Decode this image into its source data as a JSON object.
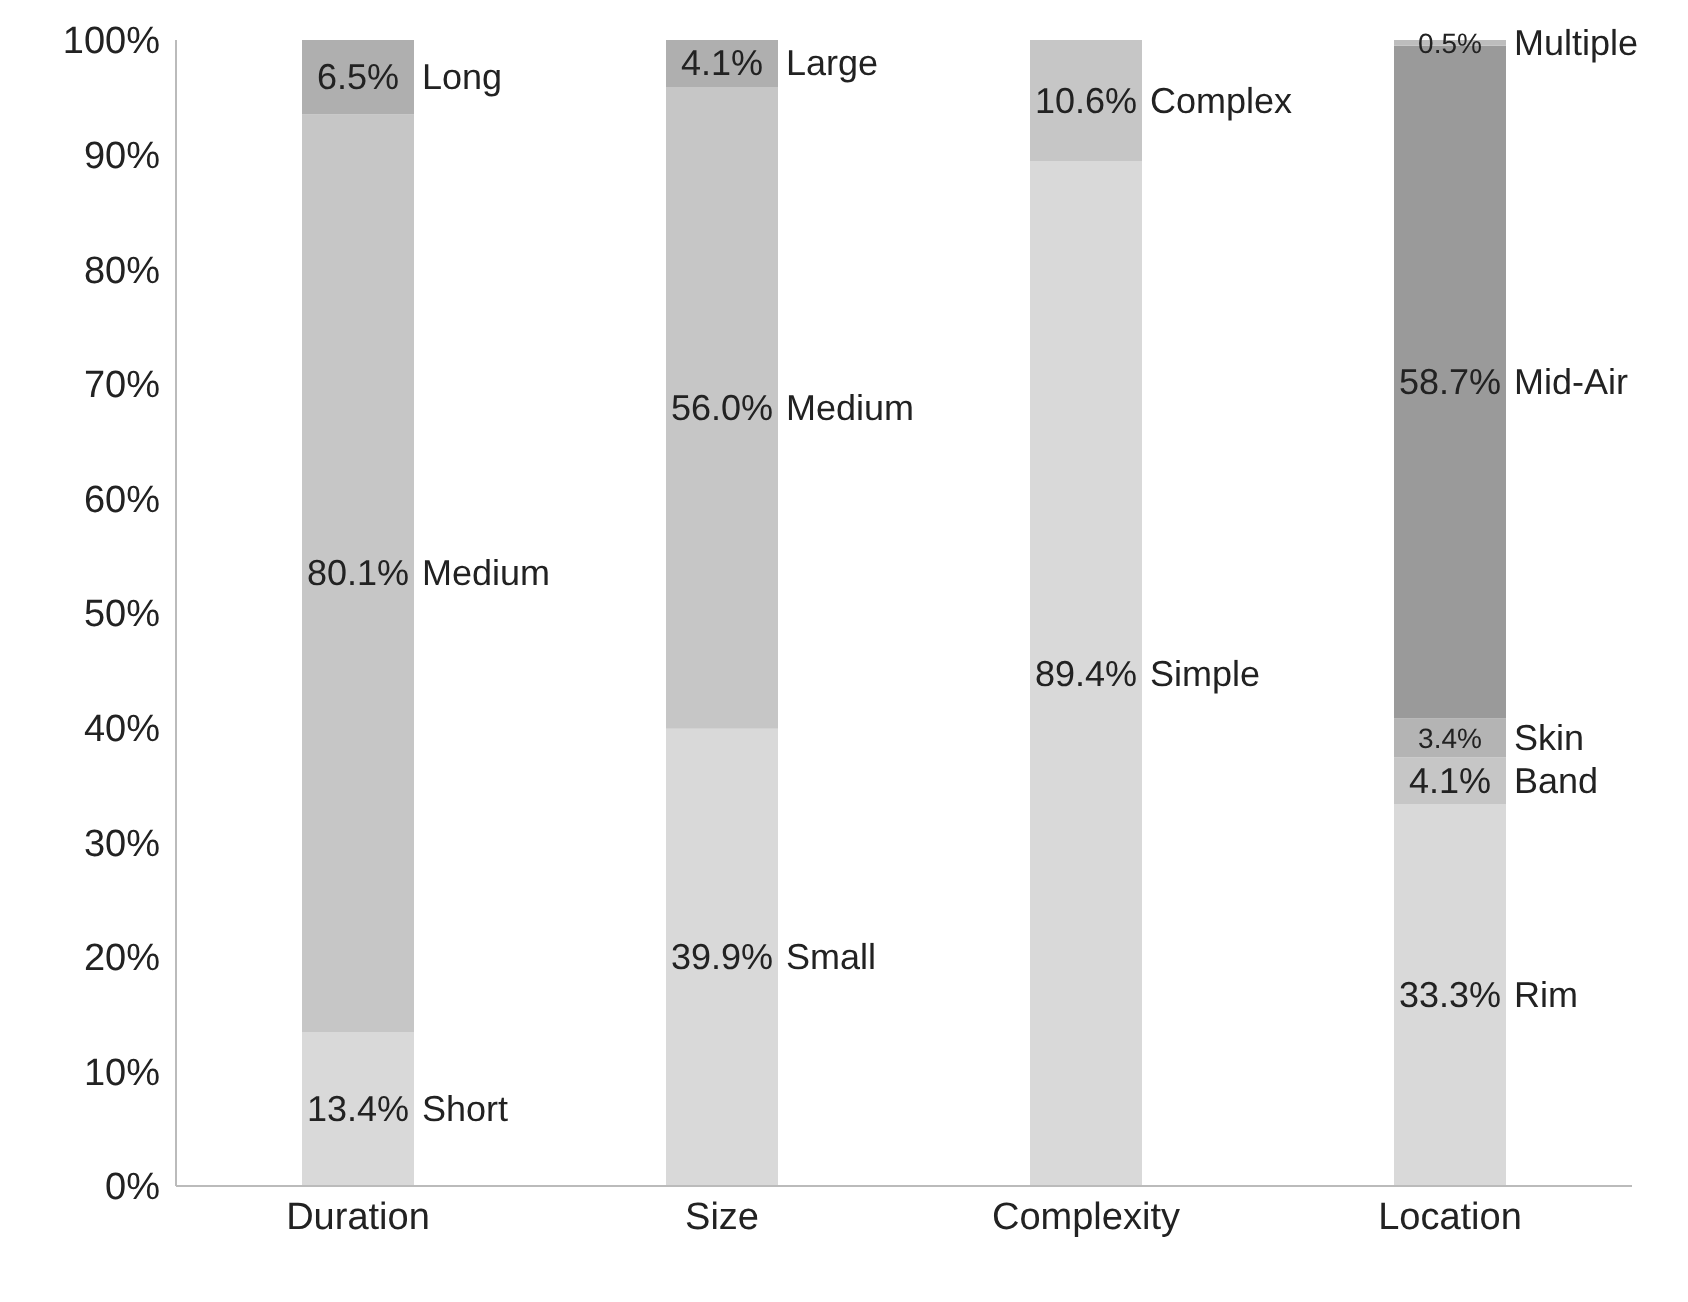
{
  "chart_data": {
    "type": "bar",
    "stacked": true,
    "categories": [
      "Duration",
      "Size",
      "Complexity",
      "Location"
    ],
    "series": [
      {
        "colors": [
          "#d9d9d9",
          "#d9d9d9",
          "#d9d9d9",
          "#d9d9d9"
        ],
        "values": [
          13.4,
          39.9,
          89.4,
          33.3
        ],
        "value_labels": [
          "13.4%",
          "39.9%",
          "89.4%",
          "33.3%"
        ]
      },
      {
        "colors": [
          "#c6c6c6",
          "#c6c6c6",
          "#c6c6c6",
          "#c6c6c6"
        ],
        "values": [
          80.1,
          56.0,
          10.6,
          4.1
        ],
        "value_labels": [
          "80.1%",
          "56.0%",
          "10.6%",
          "4.1%"
        ]
      },
      {
        "colors": [
          "#afafaf",
          "#afafaf",
          null,
          "#b4b4b4"
        ],
        "values": [
          6.5,
          4.1,
          null,
          3.4
        ],
        "value_labels": [
          "6.5%",
          "4.1%",
          null,
          "3.4%"
        ]
      },
      {
        "colors": [
          null,
          null,
          null,
          "#9a9a9a"
        ],
        "values": [
          null,
          null,
          null,
          58.7
        ],
        "value_labels": [
          null,
          null,
          null,
          "58.7%"
        ]
      },
      {
        "colors": [
          null,
          null,
          null,
          "#bdbdbd"
        ],
        "values": [
          null,
          null,
          null,
          0.5
        ],
        "value_labels": [
          null,
          null,
          null,
          "0.5%"
        ]
      }
    ],
    "ylim": [
      0,
      100
    ],
    "yticks": [
      {
        "value": 0,
        "label": "0%"
      },
      {
        "value": 10,
        "label": "10%"
      },
      {
        "value": 20,
        "label": "20%"
      },
      {
        "value": 30,
        "label": "30%"
      },
      {
        "value": 40,
        "label": "40%"
      },
      {
        "value": 50,
        "label": "50%"
      },
      {
        "value": 60,
        "label": "60%"
      },
      {
        "value": 70,
        "label": "70%"
      },
      {
        "value": 80,
        "label": "80%"
      },
      {
        "value": 90,
        "label": "90%"
      },
      {
        "value": 100,
        "label": "100%"
      }
    ],
    "grid": false,
    "legend": false,
    "annotations": [
      "Short",
      "Medium",
      "Long",
      "Small",
      "Medium",
      "Large",
      "Simple",
      "Complex",
      "Rim",
      "Band",
      "Skin",
      "Mid-Air",
      "Multiple"
    ]
  }
}
